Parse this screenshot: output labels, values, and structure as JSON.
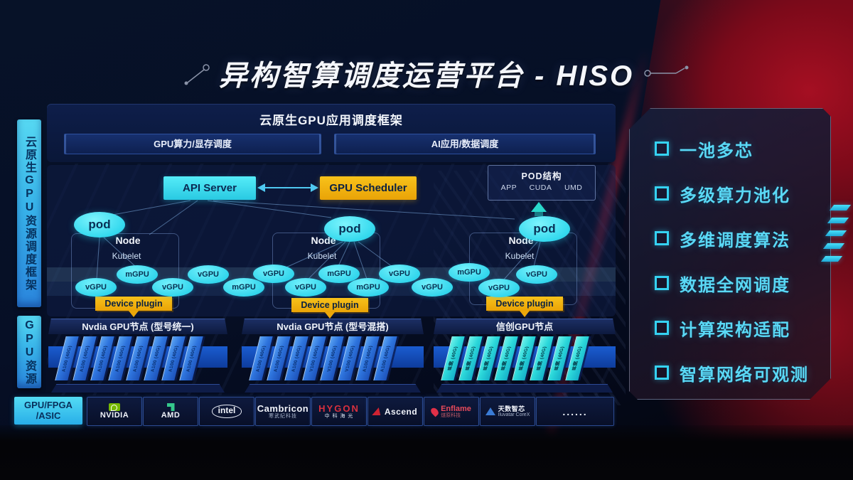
{
  "title": "异构智算调度运营平台 - HISO",
  "left_rails": {
    "rail1": "云原生GPU资源调度框架",
    "rail2": "GPU资源"
  },
  "framework": {
    "title": "云原生GPU应用调度框架",
    "bar_left": "GPU算力/显存调度",
    "bar_right": "AI应用/数据调度"
  },
  "control": {
    "api_server": "API Server",
    "gpu_scheduler": "GPU Scheduler",
    "pod_struct": {
      "title": "POD结构",
      "items": [
        "APP",
        "CUDA",
        "UMD"
      ]
    }
  },
  "nodes": [
    {
      "pod": "pod",
      "name": "Node",
      "agent": "Kubelet",
      "plugin": "Device plugin"
    },
    {
      "pod": "pod",
      "name": "Node",
      "agent": "Kubelet",
      "plugin": "Device plugin"
    },
    {
      "pod": "pod",
      "name": "Node",
      "agent": "Kubelet",
      "plugin": "Device plugin"
    }
  ],
  "gpu_band": [
    "vGPU",
    "mGPU",
    "vGPU",
    "vGPU",
    "mGPU",
    "vGPU",
    "vGPU",
    "mGPU",
    "mGPU",
    "vGPU",
    "vGPU",
    "mGPU",
    "vGPU",
    "vGPU"
  ],
  "gpu_groups": [
    {
      "title": "Nvdia GPU节点 (型号统一)",
      "cards": [
        "A100 (40G)",
        "A100 (40G)",
        "A100 (40G)",
        "A100 (40G)",
        "A100 (40G)",
        "A100 (40G)",
        "A100 (40G)",
        "A100 (40G)"
      ]
    },
    {
      "title": "Nvdia GPU节点 (型号混搭)",
      "cards": [
        "A100 (40G)",
        "A100 (40G)",
        "A100 (40G)",
        "V100 (40G)",
        "V100 (40G)",
        "V100 (40G)",
        "A100 (40G)",
        "A100 (40G)"
      ]
    },
    {
      "title": "信创GPU节点",
      "cards": [
        "昇腾 (40G)",
        "昇腾 (40G)",
        "昇腾 (40G)",
        "昇腾 (40G)",
        "昇腾 (40G)",
        "昇腾 (40G)",
        "昇腾 (40G)",
        "昇腾 (40G)"
      ]
    }
  ],
  "vendor_bar": {
    "label_line1": "GPU/FPGA",
    "label_line2": "/ASIC",
    "vendors": [
      {
        "name": "NVIDIA",
        "sub": ""
      },
      {
        "name": "AMD",
        "sub": ""
      },
      {
        "name": "intel",
        "sub": ""
      },
      {
        "name": "Cambricon",
        "sub": "寒武纪科技"
      },
      {
        "name": "HYGON",
        "sub": "中 科 海 光"
      },
      {
        "name": "Ascend",
        "sub": ""
      },
      {
        "name": "Enflame",
        "sub": "燧原科技"
      },
      {
        "name": "天数智芯",
        "sub": "Iluvatar CoreX"
      },
      {
        "name": "......",
        "sub": ""
      }
    ]
  },
  "features": [
    "一池多芯",
    "多级算力池化",
    "多维调度算法",
    "数据全网调度",
    "计算架构适配",
    "智算网络可观测"
  ],
  "colors": {
    "cyan": "#3fe0f2",
    "yellow": "#f5b60d",
    "navy": "#0b1a3e",
    "red": "#9e0e1e",
    "card_blue": "#2f7de0",
    "card_teal": "#35e0dc"
  }
}
